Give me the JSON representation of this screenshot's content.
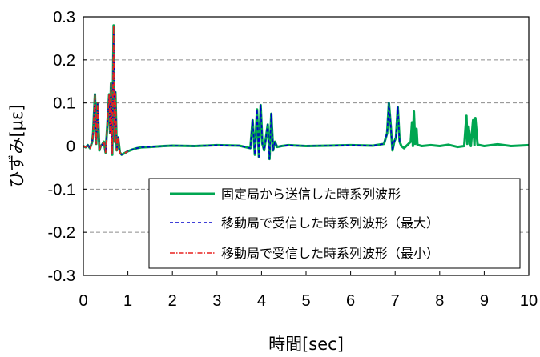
{
  "chart_data": {
    "type": "line",
    "title": "",
    "xlabel": "時間[sec]",
    "ylabel": "ひずみ[με]",
    "xlim": [
      0,
      10
    ],
    "ylim": [
      -0.3,
      0.3
    ],
    "x_ticks": [
      "0",
      "1",
      "2",
      "3",
      "4",
      "5",
      "6",
      "7",
      "8",
      "9",
      "10"
    ],
    "y_ticks": [
      "0.3",
      "0.2",
      "0.1",
      "0",
      "-0.1",
      "-0.2",
      "-0.3"
    ],
    "grid": "horizontal dashed",
    "legend_position": "bottom-right",
    "series": [
      {
        "name": "固定局から送信した時系列波形",
        "color": "#00a651",
        "style": "solid",
        "x": [
          0.0,
          0.05,
          0.1,
          0.15,
          0.2,
          0.22,
          0.26,
          0.29,
          0.32,
          0.36,
          0.39,
          0.42,
          0.46,
          0.5,
          0.54,
          0.58,
          0.6,
          0.62,
          0.65,
          0.68,
          0.7,
          0.72,
          0.75,
          0.78,
          0.82,
          0.86,
          0.9,
          1.0,
          1.1,
          1.2,
          1.3,
          1.5,
          1.8,
          2.0,
          2.5,
          3.0,
          3.5,
          3.75,
          3.8,
          3.85,
          3.9,
          3.94,
          3.98,
          4.02,
          4.06,
          4.1,
          4.14,
          4.18,
          4.22,
          4.26,
          4.3,
          4.35,
          4.45,
          4.6,
          5.0,
          5.5,
          6.0,
          6.5,
          6.75,
          6.82,
          6.86,
          6.9,
          6.94,
          6.98,
          7.02,
          7.06,
          7.1,
          7.14,
          7.2,
          7.3,
          7.35,
          7.38,
          7.4,
          7.42,
          7.45,
          7.48,
          7.5,
          7.6,
          7.8,
          8.0,
          8.2,
          8.4,
          8.55,
          8.6,
          8.62,
          8.65,
          8.7,
          8.75,
          8.78,
          8.8,
          8.85,
          8.9,
          9.0,
          9.3,
          9.6,
          10.0
        ],
        "values": [
          0.0,
          -0.003,
          0.002,
          -0.005,
          0.01,
          0.03,
          0.12,
          0.005,
          0.1,
          -0.01,
          0.0,
          0.003,
          0.01,
          -0.015,
          0.05,
          0.12,
          0.03,
          0.145,
          -0.02,
          0.28,
          0.01,
          0.125,
          -0.01,
          0.02,
          -0.015,
          -0.02,
          -0.018,
          -0.012,
          -0.008,
          -0.005,
          -0.003,
          -0.002,
          0.0,
          0.001,
          0.0,
          0.002,
          0.001,
          -0.005,
          0.06,
          -0.02,
          0.085,
          -0.025,
          0.095,
          0.005,
          -0.01,
          0.02,
          0.05,
          -0.03,
          0.075,
          -0.01,
          0.01,
          -0.002,
          0.0,
          0.002,
          0.0,
          0.001,
          0.002,
          0.001,
          0.005,
          0.03,
          0.1,
          0.05,
          -0.01,
          0.01,
          0.02,
          0.09,
          0.01,
          0.0,
          -0.005,
          0.005,
          0.01,
          0.055,
          0.0,
          0.08,
          0.005,
          0.04,
          0.003,
          0.0,
          0.002,
          0.0,
          0.003,
          -0.002,
          0.0,
          0.07,
          0.005,
          0.045,
          0.0,
          0.06,
          0.002,
          0.065,
          0.003,
          0.002,
          0.0,
          0.004,
          0.0,
          0.002
        ]
      },
      {
        "name": "移動局で受信した時系列波形（最大）",
        "color": "#0000cc",
        "style": "dashed",
        "x": [
          0.0,
          0.05,
          0.1,
          0.15,
          0.2,
          0.22,
          0.26,
          0.29,
          0.32,
          0.36,
          0.39,
          0.42,
          0.46,
          0.5,
          0.54,
          0.58,
          0.6,
          0.62,
          0.65,
          0.68,
          0.7,
          0.72,
          0.75,
          0.78,
          0.82,
          0.86,
          0.9,
          1.0,
          1.1,
          1.2,
          1.3,
          1.5,
          1.8,
          2.0,
          2.5,
          3.0,
          3.5,
          3.75,
          3.8,
          3.85,
          3.9,
          3.94,
          3.98,
          4.02,
          4.06,
          4.1,
          4.14,
          4.18,
          4.22,
          4.26,
          4.3,
          4.35,
          4.45,
          4.6,
          5.0,
          5.5,
          6.0,
          6.5,
          6.75,
          6.82,
          6.86,
          6.9,
          6.94,
          6.98,
          7.02,
          7.06,
          7.1
        ],
        "values": [
          0.0,
          -0.003,
          0.002,
          -0.005,
          0.01,
          0.03,
          0.12,
          0.005,
          0.1,
          -0.01,
          0.0,
          0.003,
          0.01,
          -0.015,
          0.05,
          0.12,
          0.03,
          0.145,
          -0.02,
          0.28,
          0.01,
          0.125,
          -0.01,
          0.02,
          -0.015,
          -0.02,
          -0.018,
          -0.012,
          -0.008,
          -0.005,
          -0.003,
          -0.002,
          0.0,
          0.001,
          0.0,
          0.002,
          0.001,
          -0.005,
          0.06,
          -0.02,
          0.085,
          -0.025,
          0.095,
          0.005,
          -0.01,
          0.02,
          0.05,
          -0.03,
          0.075,
          -0.01,
          0.01,
          -0.002,
          0.0,
          0.002,
          0.0,
          0.001,
          0.002,
          0.001,
          0.005,
          0.03,
          0.1,
          0.05,
          -0.01,
          0.01,
          0.02,
          0.09,
          0.01
        ]
      },
      {
        "name": "移動局で受信した時系列波形（最小）",
        "color": "#e8201e",
        "style": "dashdot",
        "x": [
          0.0,
          0.05,
          0.1,
          0.15,
          0.2,
          0.22,
          0.26,
          0.29,
          0.32,
          0.36,
          0.39,
          0.42,
          0.46,
          0.5,
          0.54,
          0.58,
          0.6,
          0.62,
          0.65,
          0.68,
          0.7,
          0.72,
          0.75,
          0.78,
          0.82,
          0.86,
          0.9,
          1.0
        ],
        "values": [
          0.0,
          -0.003,
          0.002,
          -0.005,
          0.01,
          0.03,
          0.12,
          0.005,
          0.1,
          -0.01,
          0.0,
          0.003,
          0.01,
          -0.015,
          0.05,
          0.12,
          0.03,
          0.145,
          -0.02,
          0.28,
          0.01,
          0.125,
          -0.01,
          0.02,
          -0.015,
          -0.02,
          -0.018,
          -0.012
        ]
      }
    ]
  }
}
